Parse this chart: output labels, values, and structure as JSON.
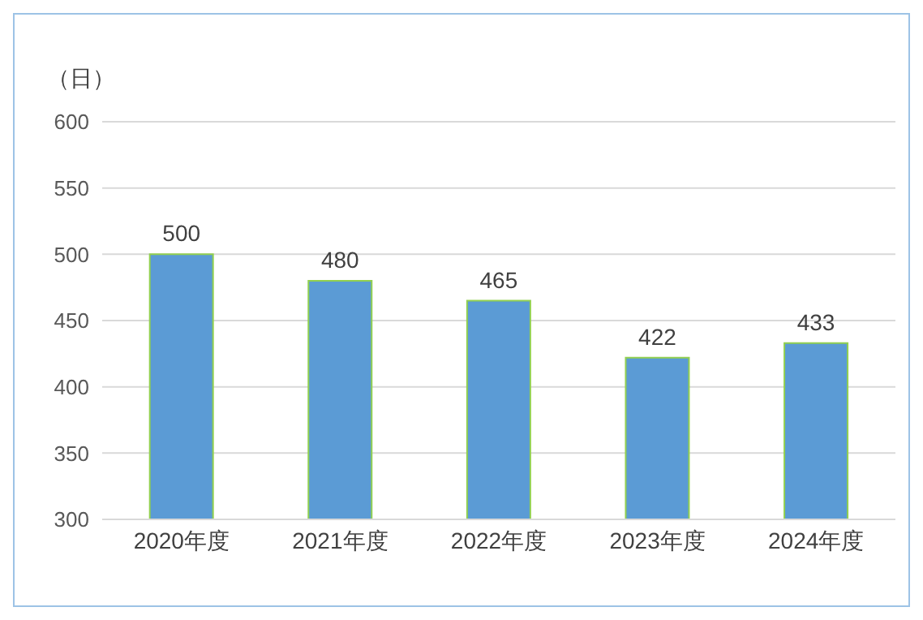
{
  "chart_data": {
    "type": "bar",
    "ylabel": "（日）",
    "categories": [
      "2020年度",
      "2021年度",
      "2022年度",
      "2023年度",
      "2024年度"
    ],
    "values": [
      500,
      480,
      465,
      422,
      433
    ],
    "color": "#5b9bd5",
    "ylim": [
      300,
      600
    ],
    "yticks": [
      300,
      350,
      400,
      450,
      500,
      550,
      600
    ],
    "grid": "y",
    "data_labels": true
  }
}
